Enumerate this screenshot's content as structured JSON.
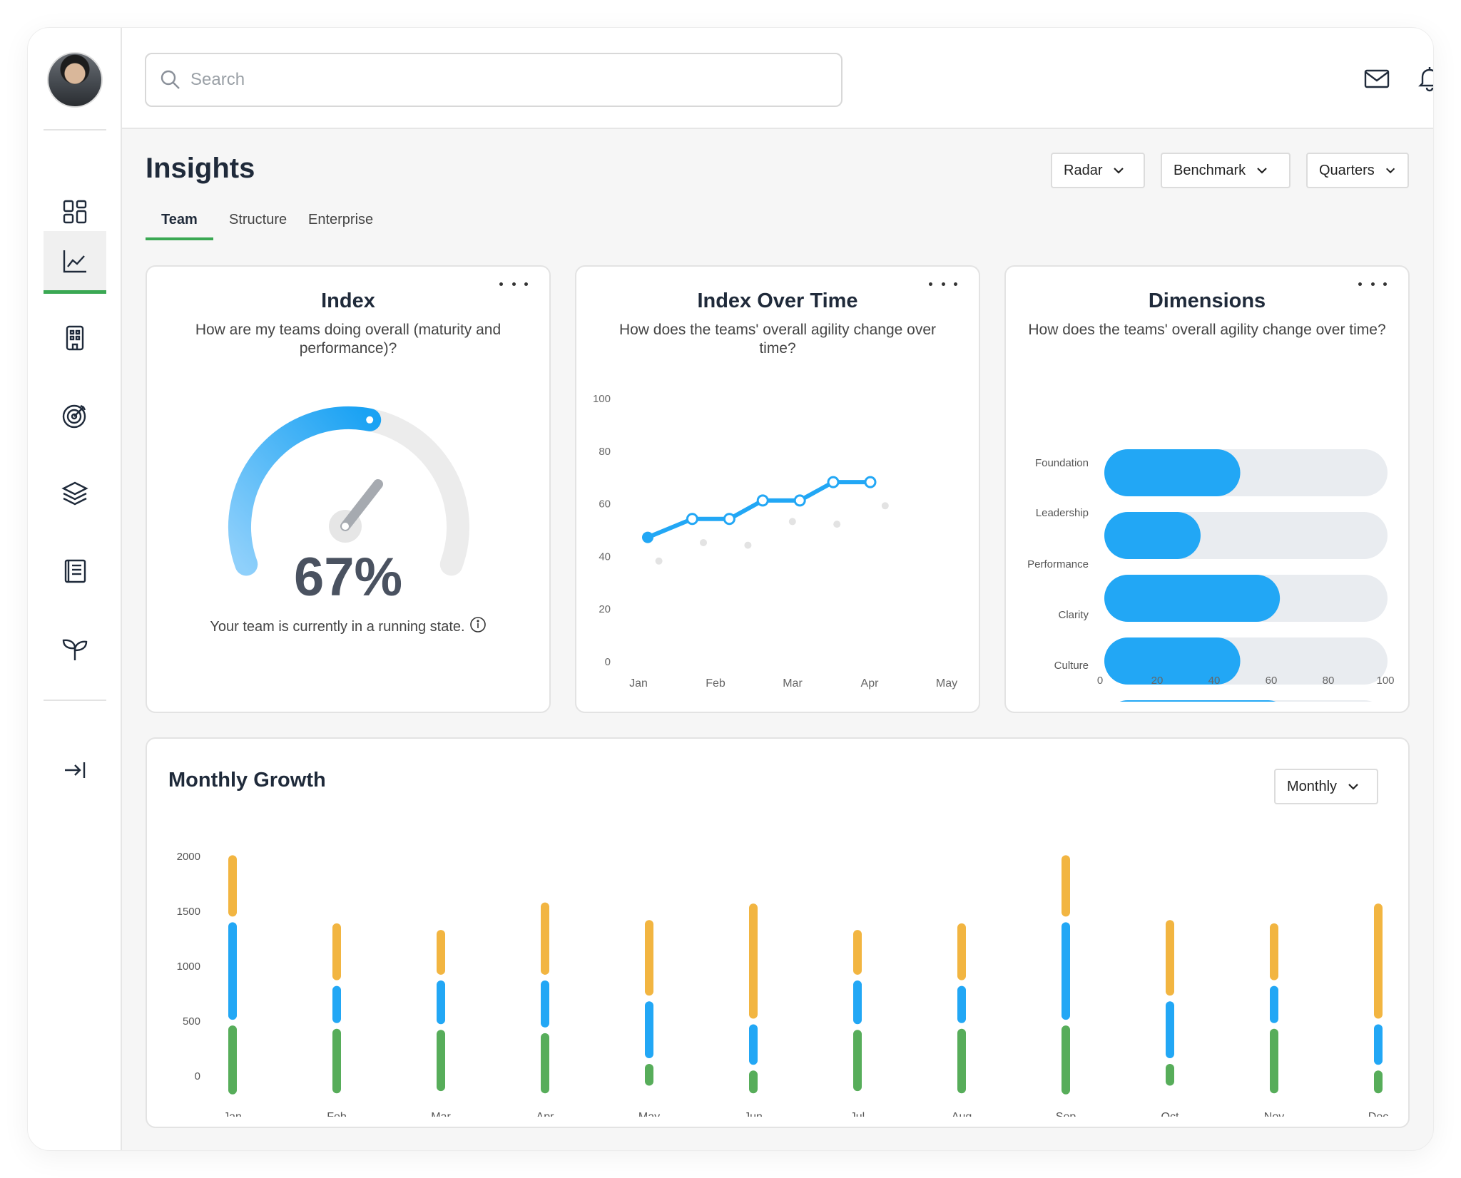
{
  "search": {
    "placeholder": "Search"
  },
  "icons": {
    "sidebar": [
      "dashboard-grid-icon",
      "line-chart-icon",
      "building-icon",
      "target-icon",
      "layers-icon",
      "book-icon",
      "sprout-icon",
      "collapse-sidebar-icon"
    ],
    "top": [
      "mail-icon",
      "bell-icon"
    ]
  },
  "header": {
    "title": "Insights",
    "filters": [
      {
        "label": "Radar"
      },
      {
        "label": "Benchmark"
      },
      {
        "label": "Quarters"
      }
    ],
    "tabs": [
      {
        "label": "Team",
        "active": true
      },
      {
        "label": "Structure",
        "active": false
      },
      {
        "label": "Enterprise",
        "active": false
      }
    ]
  },
  "cards": {
    "index": {
      "title": "Index",
      "subtitle": "How are my teams doing overall (maturity and performance)?",
      "value_label": "67%",
      "value": 67,
      "note": "Your team is currently in a running state."
    },
    "index_over_time": {
      "title": "Index Over Time",
      "subtitle": "How does the teams' overall agility change over time?"
    },
    "dimensions": {
      "title": "Dimensions",
      "subtitle": "How does the teams' overall agility change over time?"
    },
    "monthly_growth": {
      "title": "Monthly Growth",
      "period": "Monthly"
    }
  },
  "colors": {
    "accent_green": "#3aa853",
    "blue": "#22a7f5",
    "yellow": "#f2b541",
    "green_bar": "#57ad5a",
    "track": "#e9ecf0"
  },
  "chart_data": [
    {
      "type": "line",
      "title": "Index Over Time",
      "x": [
        "Jan",
        "Feb",
        "Mar",
        "Apr",
        "May"
      ],
      "ylim": [
        0,
        100
      ],
      "yticks": [
        0,
        20,
        40,
        60,
        80,
        100
      ],
      "series": [
        {
          "values": [
            [
              0,
              47
            ],
            [
              0.6,
              54
            ],
            [
              1.1,
              54
            ],
            [
              1.55,
              61
            ],
            [
              2.05,
              61
            ],
            [
              2.5,
              68
            ],
            [
              3.0,
              68
            ]
          ]
        },
        {
          "values": [
            [
              0.15,
              38
            ],
            [
              0.75,
              45
            ],
            [
              1.35,
              44
            ],
            [
              1.95,
              53
            ],
            [
              2.55,
              52
            ],
            [
              3.2,
              59
            ]
          ]
        }
      ]
    },
    {
      "type": "bar",
      "title": "Dimensions",
      "orientation": "horizontal",
      "labels": [
        "Foundation",
        "Leadership",
        "Performance",
        "Clarity",
        "Culture"
      ],
      "values": [
        48,
        34,
        62,
        48,
        66
      ],
      "xlim": [
        0,
        100
      ],
      "xticks": [
        0,
        20,
        40,
        60,
        80,
        100
      ]
    },
    {
      "type": "bar",
      "title": "Monthly Growth",
      "stacked": true,
      "categories": [
        "Jan",
        "Feb",
        "Mar",
        "Apr",
        "May",
        "Jun",
        "Jul",
        "Aug",
        "Sep",
        "Oct",
        "Nov",
        "Dec"
      ],
      "yticks": [
        0,
        500,
        1000,
        1500,
        2000
      ],
      "ylim": [
        -250,
        2050
      ],
      "series": [
        {
          "values": [
            -200,
            -190,
            -170,
            -190,
            -120,
            -190,
            -170,
            -190,
            -200,
            -120,
            -190,
            -190
          ],
          "ends": [
            480,
            450,
            440,
            410,
            130,
            70,
            440,
            450,
            480,
            130,
            450,
            70
          ]
        },
        {
          "values": [
            480,
            450,
            440,
            410,
            130,
            70,
            440,
            450,
            480,
            130,
            450,
            70
          ],
          "ends": [
            1420,
            840,
            890,
            890,
            700,
            490,
            890,
            840,
            1420,
            700,
            840,
            490
          ]
        },
        {
          "values": [
            1420,
            840,
            890,
            890,
            700,
            490,
            890,
            840,
            1420,
            700,
            840,
            490
          ],
          "ends": [
            2030,
            1410,
            1350,
            1600,
            1440,
            1590,
            1350,
            1410,
            2030,
            1440,
            1410,
            1590
          ]
        }
      ]
    }
  ]
}
